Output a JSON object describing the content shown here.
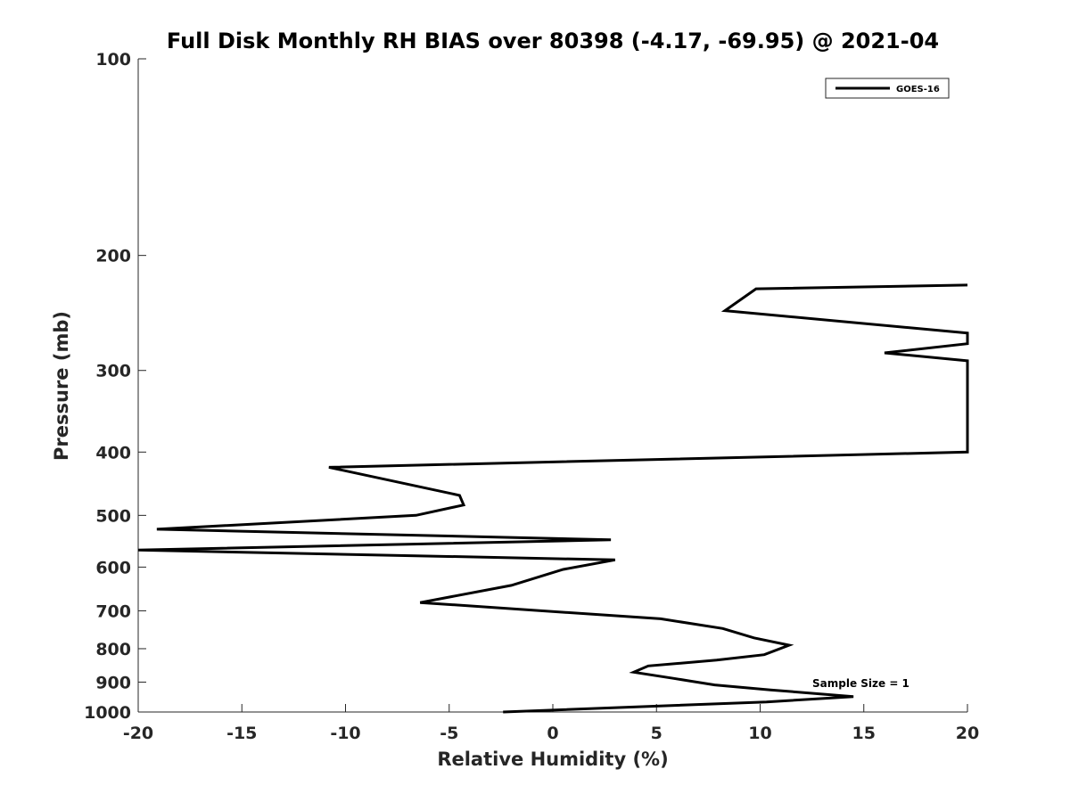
{
  "chart_data": {
    "type": "line",
    "title": "Full Disk Monthly RH BIAS over 80398 (-4.17, -69.95) @ 2021-04",
    "xlabel": "Relative Humidity (%)",
    "ylabel": "Pressure (mb)",
    "xlim": [
      -20,
      20
    ],
    "ylim": [
      100,
      1000
    ],
    "yscale": "log",
    "yreversed": true,
    "grid": false,
    "legend_position": "top-right",
    "xticks": [
      -20,
      -15,
      -10,
      -5,
      0,
      5,
      10,
      15,
      20
    ],
    "yticks": [
      100,
      200,
      300,
      400,
      500,
      600,
      700,
      800,
      900,
      1000
    ],
    "annotation": "Sample Size = 1",
    "series": [
      {
        "name": "GOES-16",
        "color": "#000000",
        "points": [
          {
            "x": -2.4,
            "p": 1000
          },
          {
            "x": 10.3,
            "p": 965
          },
          {
            "x": 14.5,
            "p": 947
          },
          {
            "x": 10.5,
            "p": 925
          },
          {
            "x": 7.8,
            "p": 909
          },
          {
            "x": 5.8,
            "p": 888
          },
          {
            "x": 3.9,
            "p": 869
          },
          {
            "x": 4.6,
            "p": 850
          },
          {
            "x": 7.9,
            "p": 833
          },
          {
            "x": 10.2,
            "p": 817
          },
          {
            "x": 11.4,
            "p": 790
          },
          {
            "x": 9.7,
            "p": 770
          },
          {
            "x": 8.2,
            "p": 745
          },
          {
            "x": 5.2,
            "p": 720
          },
          {
            "x": -6.4,
            "p": 680
          },
          {
            "x": -2.0,
            "p": 640
          },
          {
            "x": 0.5,
            "p": 605
          },
          {
            "x": 3.0,
            "p": 585
          },
          {
            "x": -20.0,
            "p": 565
          },
          {
            "x": 2.8,
            "p": 545
          },
          {
            "x": -19.1,
            "p": 525
          },
          {
            "x": -6.6,
            "p": 500
          },
          {
            "x": -4.3,
            "p": 482
          },
          {
            "x": -4.5,
            "p": 466
          },
          {
            "x": -10.8,
            "p": 422
          },
          {
            "x": 20.0,
            "p": 400
          },
          {
            "x": 20.0,
            "p": 290
          },
          {
            "x": 16.0,
            "p": 282
          },
          {
            "x": 20.0,
            "p": 273
          },
          {
            "x": 20.0,
            "p": 263
          },
          {
            "x": 8.3,
            "p": 243
          },
          {
            "x": 9.8,
            "p": 225
          },
          {
            "x": 20.0,
            "p": 222
          }
        ]
      }
    ]
  }
}
